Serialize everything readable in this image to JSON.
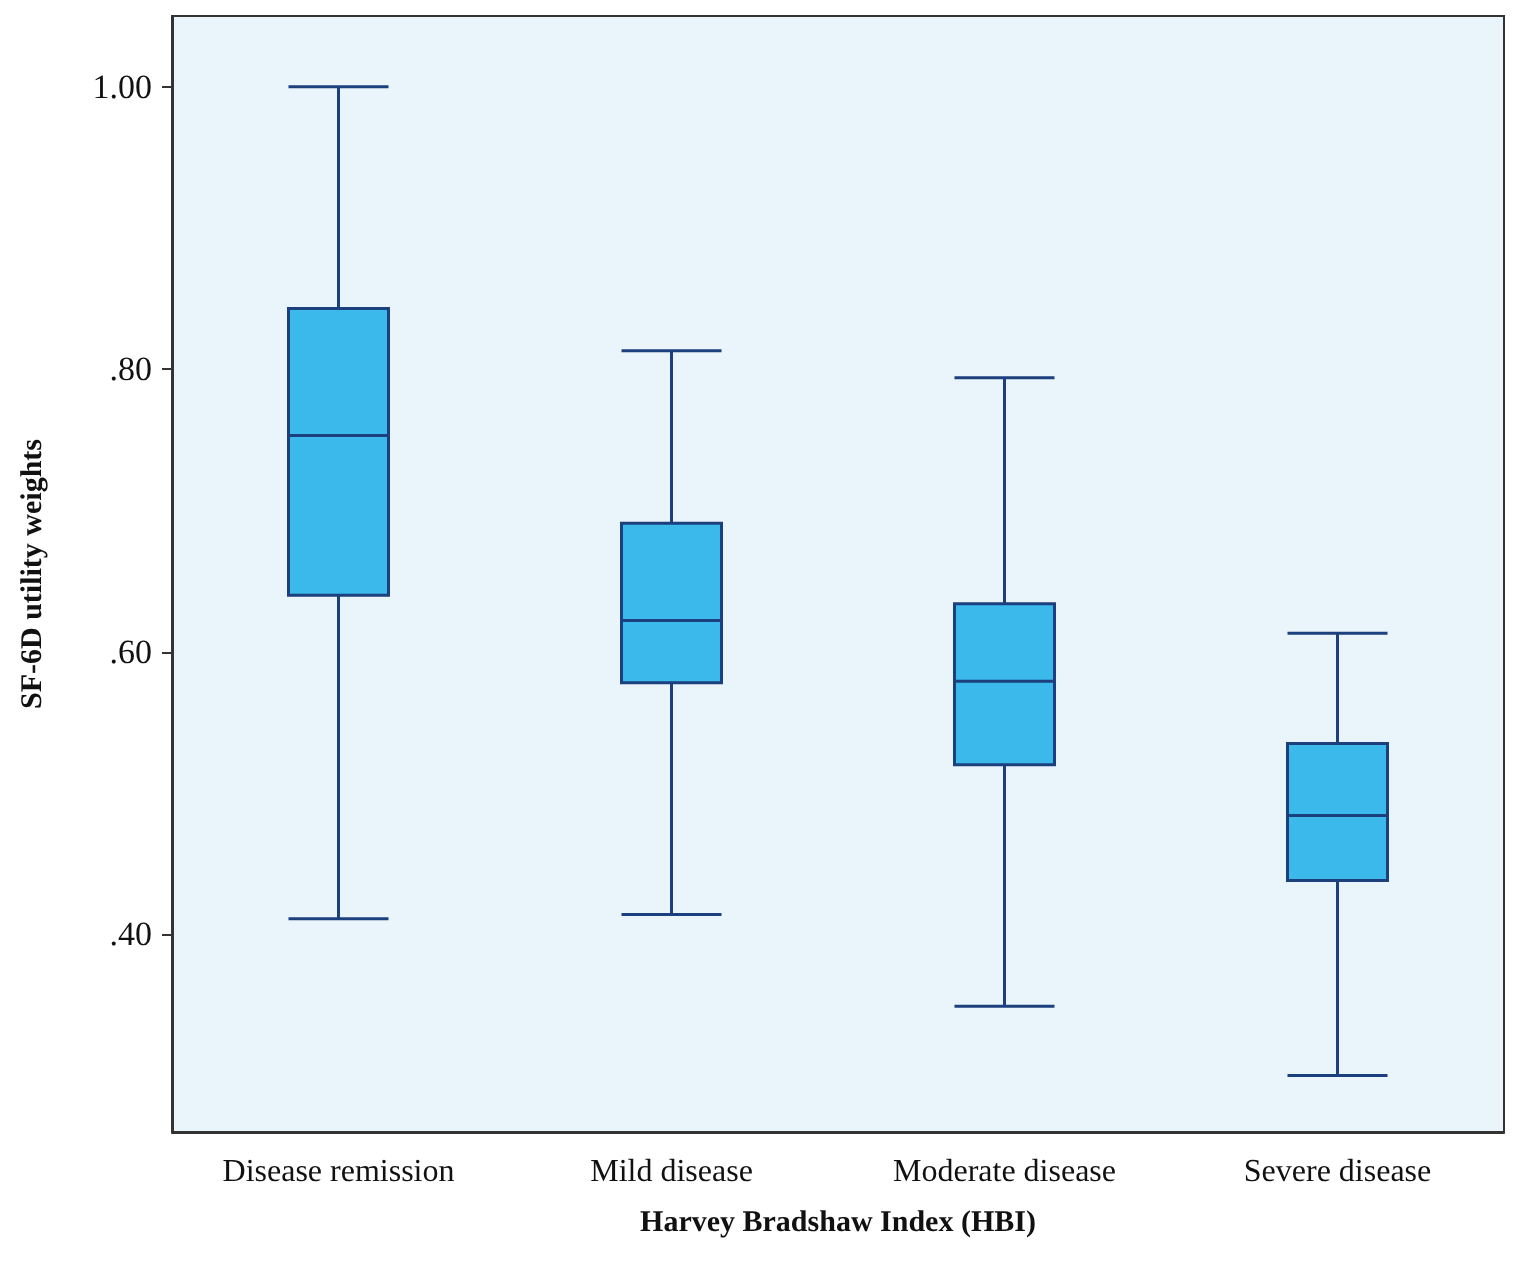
{
  "chart_data": {
    "type": "box",
    "xlabel": "Harvey Bradshaw Index (HBI)",
    "ylabel": "SF-6D utility weights",
    "categories": [
      "Disease remission",
      "Mild disease",
      "Moderate disease",
      "Severe disease"
    ],
    "series": [
      {
        "color": "#3bb9ea",
        "boxes": [
          {
            "low": 0.411,
            "q1": 0.64,
            "median": 0.753,
            "q3": 0.843,
            "high": 1.0
          },
          {
            "low": 0.414,
            "q1": 0.578,
            "median": 0.622,
            "q3": 0.691,
            "high": 0.813
          },
          {
            "low": 0.349,
            "q1": 0.52,
            "median": 0.579,
            "q3": 0.634,
            "high": 0.794
          },
          {
            "low": 0.3,
            "q1": 0.438,
            "median": 0.484,
            "q3": 0.535,
            "high": 0.613
          }
        ]
      }
    ],
    "ylim": [
      0.26,
      1.05
    ],
    "yticks": [
      {
        "value": 0.4,
        "label": ".40"
      },
      {
        "value": 0.6,
        "label": ".60"
      },
      {
        "value": 0.8,
        "label": ".80"
      },
      {
        "value": 1.0,
        "label": "1.00"
      }
    ],
    "grid": false
  }
}
